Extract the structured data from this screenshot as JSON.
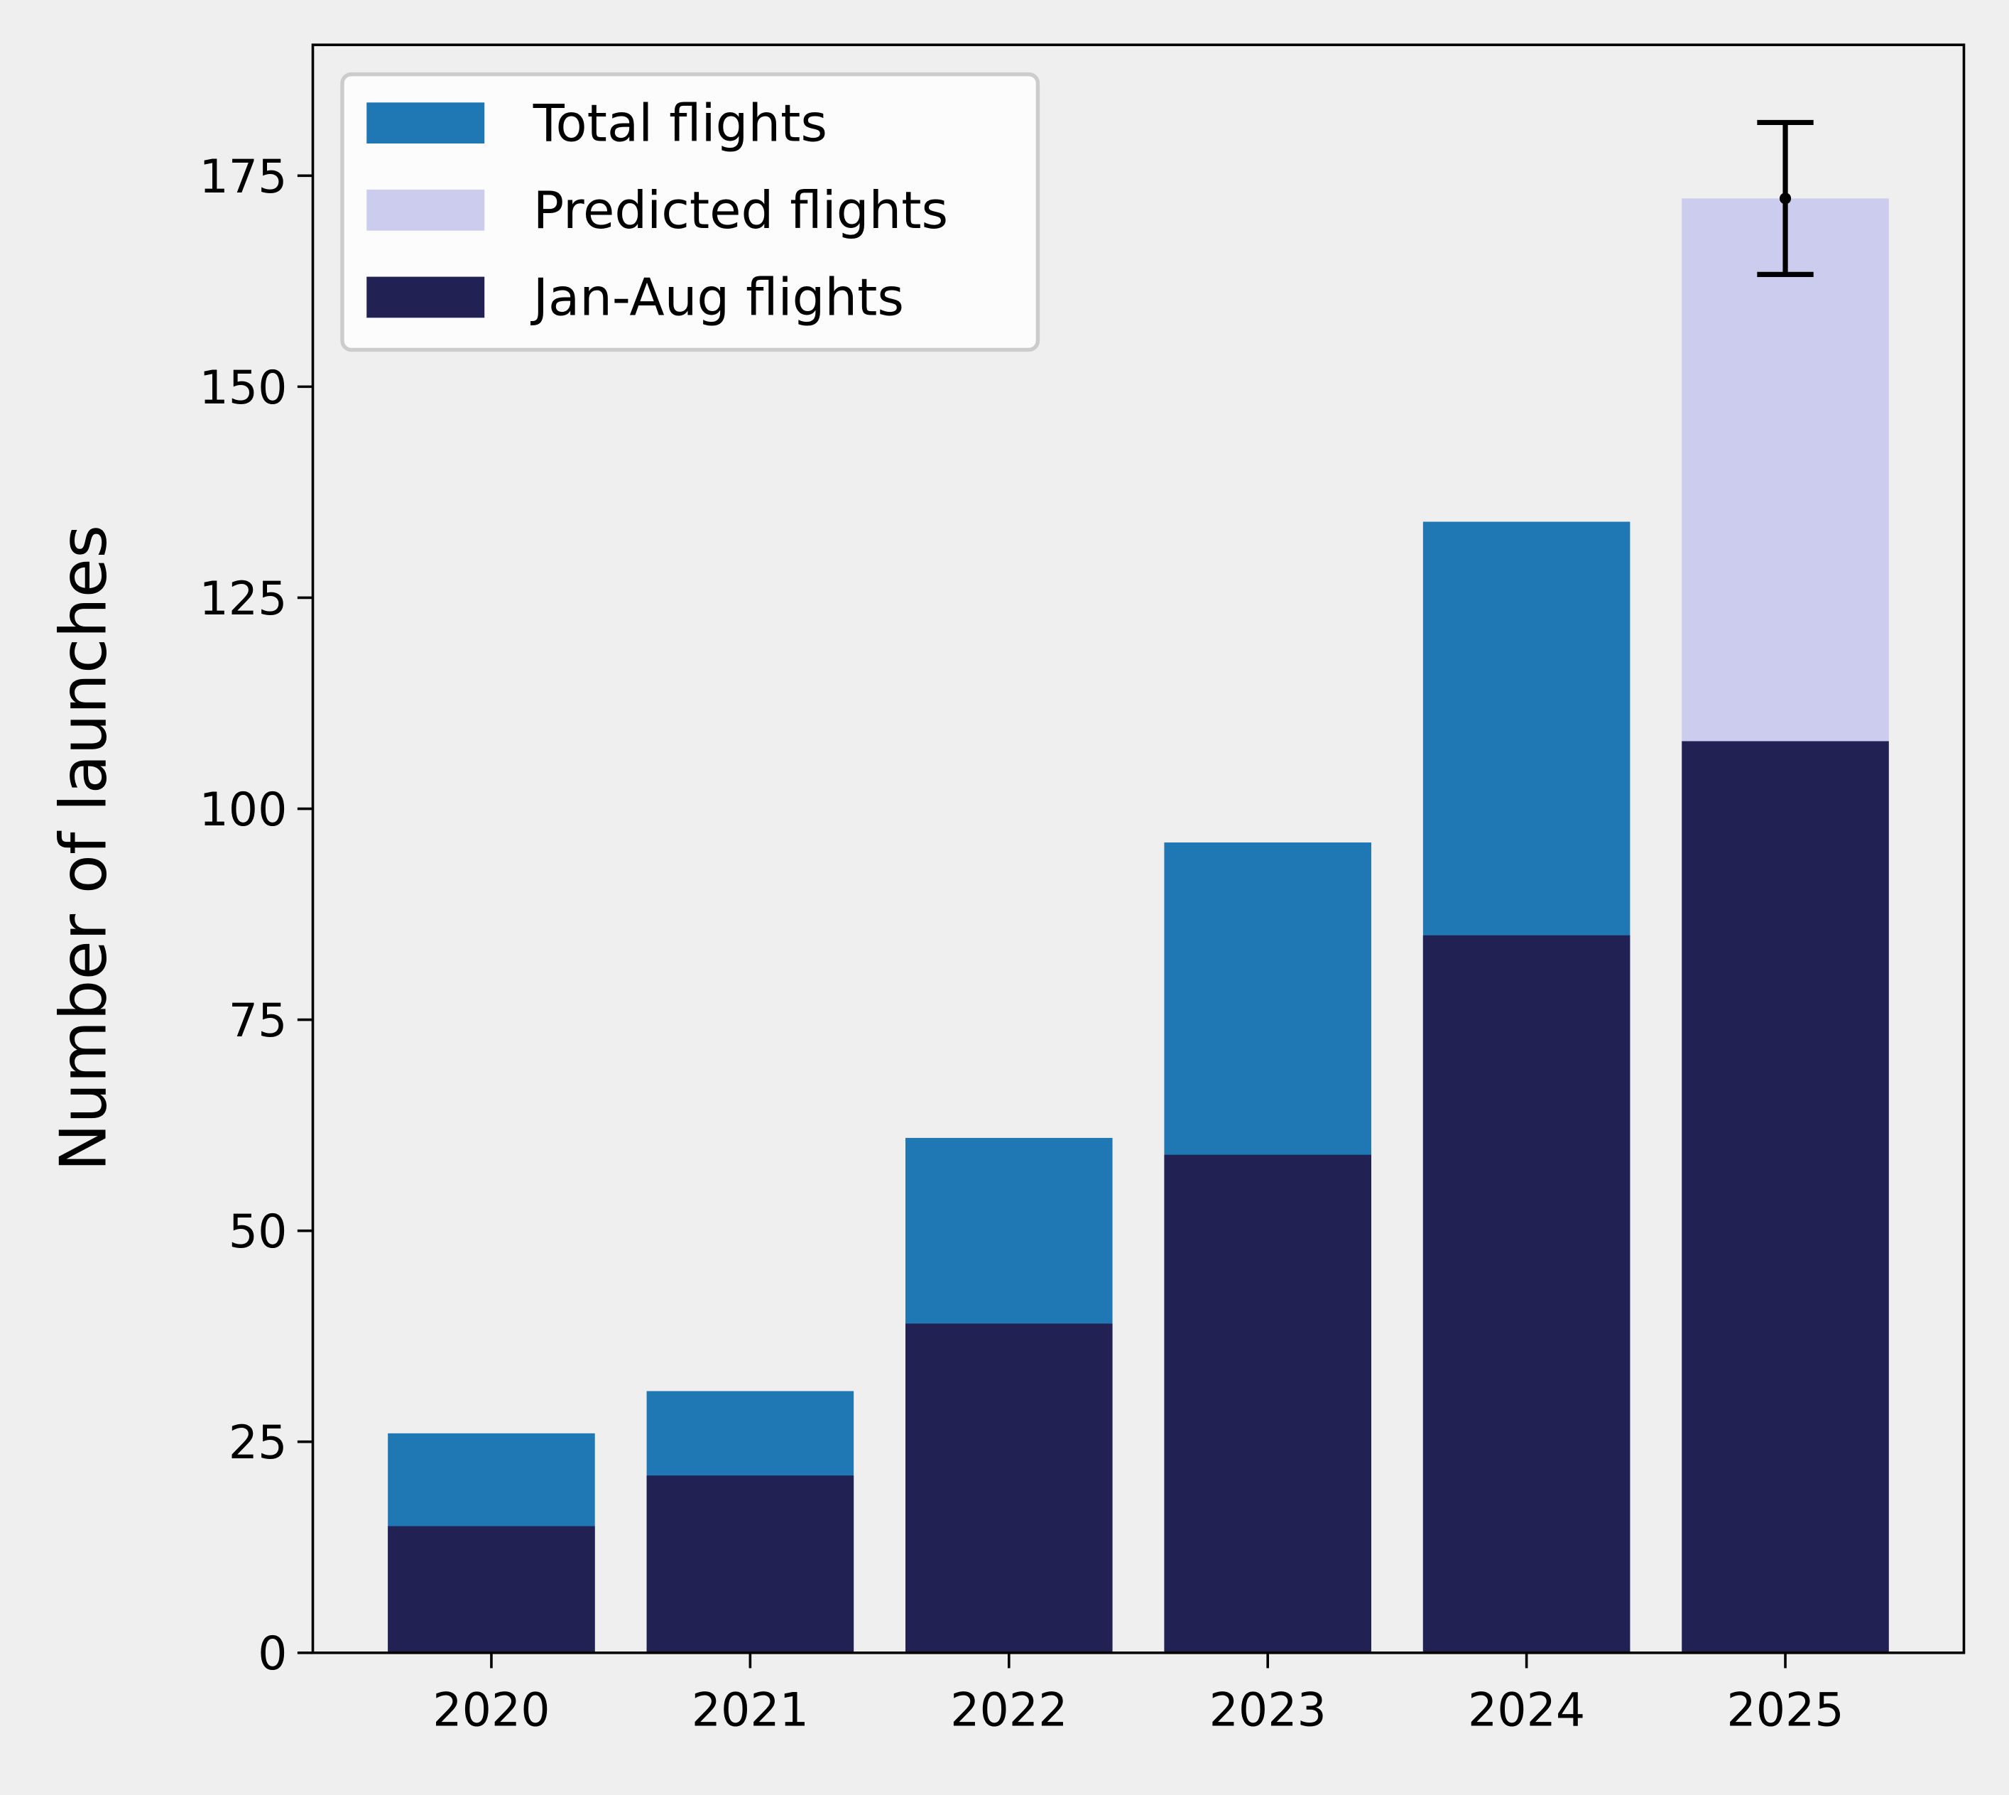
{
  "chart_data": {
    "type": "bar",
    "ylabel": "Number of launches",
    "categories": [
      "2020",
      "2021",
      "2022",
      "2023",
      "2024",
      "2025"
    ],
    "series": [
      {
        "name": "Total flights",
        "color": "#1f77b4",
        "values": [
          26,
          31,
          61,
          96,
          134,
          null
        ]
      },
      {
        "name": "Predicted flights",
        "color": "#ccccee",
        "values": [
          null,
          null,
          null,
          null,
          null,
          172.3
        ],
        "errors": [
          null,
          null,
          null,
          null,
          null,
          9
        ]
      },
      {
        "name": "Jan-Aug flights",
        "color": "#212153",
        "values": [
          15,
          21,
          39,
          59,
          85,
          108
        ]
      }
    ],
    "ylim": [
      0,
      190.5
    ],
    "yticks": [
      0,
      25,
      50,
      75,
      100,
      125,
      150,
      175
    ],
    "legend": "upper left"
  }
}
